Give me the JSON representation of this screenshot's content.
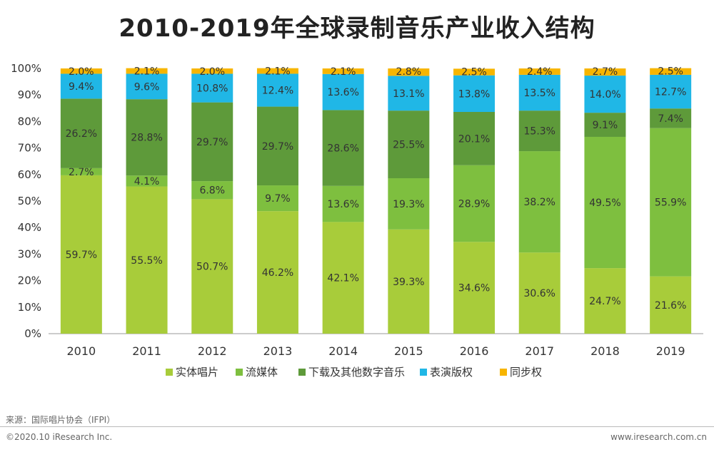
{
  "page": {
    "source": "来源：国际唱片协会（IFPI）",
    "copyright": "©2020.10 iResearch Inc.",
    "website": "www.iresearch.com.cn"
  },
  "chart_data": {
    "type": "bar",
    "stacked": true,
    "title": "2010-2019年全球录制音乐产业收入结构",
    "xlabel": "",
    "ylabel": "",
    "ylim": [
      0,
      100
    ],
    "yticks": [
      "0%",
      "10%",
      "20%",
      "30%",
      "40%",
      "50%",
      "60%",
      "70%",
      "80%",
      "90%",
      "100%"
    ],
    "categories": [
      "2010",
      "2011",
      "2012",
      "2013",
      "2014",
      "2015",
      "2016",
      "2017",
      "2018",
      "2019"
    ],
    "legend_position": "bottom",
    "series": [
      {
        "name": "实体唱片",
        "color": "#a8cc3a",
        "values": [
          59.7,
          55.5,
          50.7,
          46.2,
          42.1,
          39.3,
          34.6,
          30.6,
          24.7,
          21.6
        ],
        "labels": [
          "59.7%",
          "55.5%",
          "50.7%",
          "46.2%",
          "42.1%",
          "39.3%",
          "34.6%",
          "30.6%",
          "24.7%",
          "21.6%"
        ]
      },
      {
        "name": "流媒体",
        "color": "#7ebf3f",
        "values": [
          2.7,
          4.1,
          6.8,
          9.7,
          13.6,
          19.3,
          28.9,
          38.2,
          49.5,
          55.9
        ],
        "labels": [
          "2.7%",
          "4.1%",
          "6.8%",
          "9.7%",
          "13.6%",
          "19.3%",
          "28.9%",
          "38.2%",
          "49.5%",
          "55.9%"
        ]
      },
      {
        "name": "下载及其他数字音乐",
        "color": "#5e9a3a",
        "values": [
          26.2,
          28.8,
          29.7,
          29.7,
          28.6,
          25.5,
          20.1,
          15.3,
          9.1,
          7.4
        ],
        "labels": [
          "26.2%",
          "28.8%",
          "29.7%",
          "29.7%",
          "28.6%",
          "25.5%",
          "20.1%",
          "15.3%",
          "9.1%",
          "7.4%"
        ]
      },
      {
        "name": "表演版权",
        "color": "#20b7e6",
        "values": [
          9.4,
          9.6,
          10.8,
          12.4,
          13.6,
          13.1,
          13.8,
          13.5,
          14.0,
          12.7
        ],
        "labels": [
          "9.4%",
          "9.6%",
          "10.8%",
          "12.4%",
          "13.6%",
          "13.1%",
          "13.8%",
          "13.5%",
          "14.0%",
          "12.7%"
        ]
      },
      {
        "name": "同步权",
        "color": "#f7b500",
        "values": [
          2.0,
          2.1,
          2.0,
          2.1,
          2.1,
          2.8,
          2.5,
          2.4,
          2.7,
          2.5
        ],
        "labels": [
          "2.0%",
          "2.1%",
          "2.0%",
          "2.1%",
          "2.1%",
          "2.8%",
          "2.5%",
          "2.4%",
          "2.7%",
          "2.5%"
        ]
      }
    ]
  }
}
